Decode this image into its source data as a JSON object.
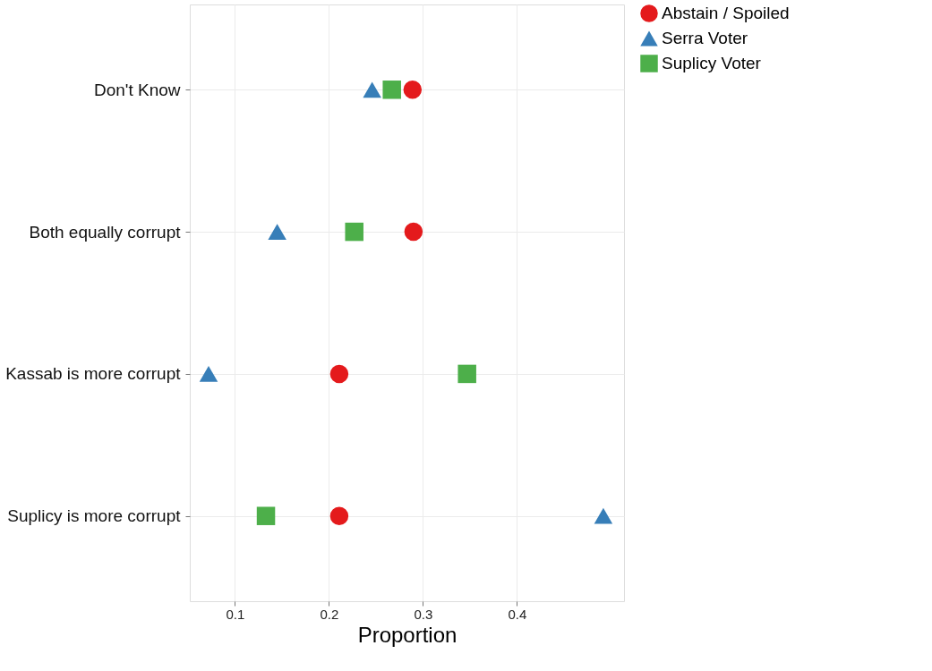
{
  "chart_data": {
    "type": "scatter",
    "orientation": "horizontal",
    "xlabel": "Proportion",
    "categories": [
      "Don't Know",
      "Both equally corrupt",
      "Kassab is more corrupt",
      "Suplicy is more corrupt"
    ],
    "series": [
      {
        "name": "Abstain / Spoiled",
        "color": "#e41a1c",
        "marker": "circle",
        "values": [
          0.289,
          0.29,
          0.211,
          0.211
        ]
      },
      {
        "name": "Serra Voter",
        "color": "#377eb8",
        "marker": "triangle",
        "values": [
          0.246,
          0.145,
          0.072,
          0.492
        ]
      },
      {
        "name": "Suplicy Voter",
        "color": "#4daf4a",
        "marker": "square",
        "values": [
          0.267,
          0.227,
          0.347,
          0.133
        ]
      }
    ],
    "xlim": [
      0.052,
      0.514
    ],
    "xticks": [
      0.1,
      0.2,
      0.3,
      0.4
    ],
    "grid": true,
    "legend": "right"
  }
}
